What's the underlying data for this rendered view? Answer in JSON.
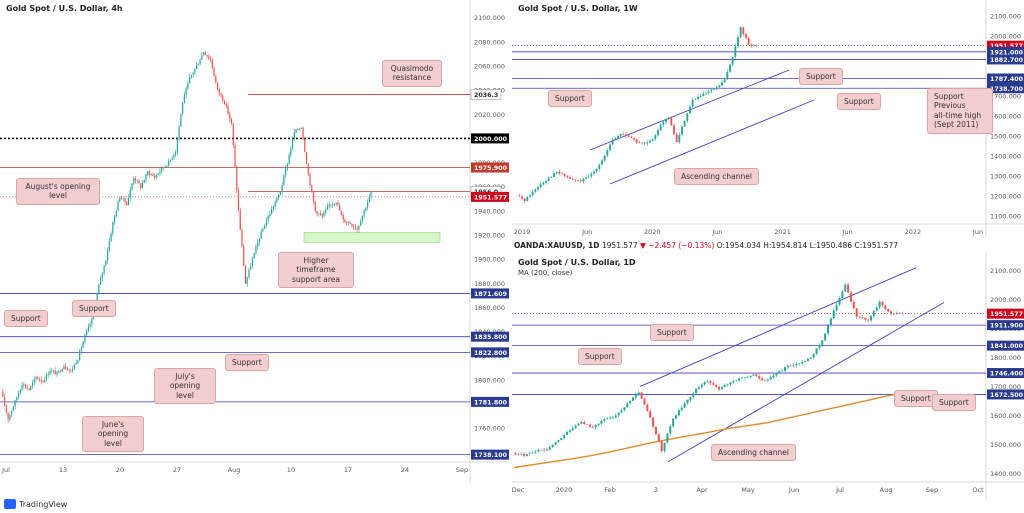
{
  "branding": {
    "name": "TradingView",
    "icon": "tradingview-logo-icon"
  },
  "symbol_bar": {
    "symbol": "OANDA:XAUUSD, 1D",
    "last": "1951.577",
    "change": "▼ −2.457 (−0.13%)",
    "open": "O:1954.034",
    "high": "H:1954.814",
    "low": "L:1950.486",
    "close": "C:1951.577"
  },
  "colors": {
    "candle_up": "#26a69a",
    "candle_down": "#ef5350",
    "support_line": "#3f3fbf",
    "resistance_line": "#c0392b",
    "ma_line": "#e08b2b",
    "demand_zone": "#b9f5a3",
    "callout_bg": "#f3cece",
    "price_tag_red": "#d0021b",
    "price_tag_blue": "#2a3a8f"
  },
  "chart_data": [
    {
      "type": "candlestick",
      "title": "Gold Spot / U.S. Dollar, 4h",
      "x_tick_labels": [
        "Jul",
        "13",
        "20",
        "27",
        "Aug",
        "10",
        "17",
        "24",
        "Sep"
      ],
      "y_tick_labels": [
        "2100.000",
        "2080.000",
        "2060.000",
        "2040.000",
        "2020.000",
        "2000.000",
        "1980.000",
        "1960.000",
        "1940.000",
        "1920.000",
        "1900.000",
        "1880.000",
        "1860.000",
        "1840.000",
        "1820.000",
        "1800.000",
        "1780.000",
        "1760.000",
        "1740.000"
      ],
      "ylim": [
        1732,
        2108
      ],
      "close_path": [
        1790,
        1768,
        1782,
        1797,
        1792,
        1802,
        1799,
        1808,
        1805,
        1812,
        1807,
        1818,
        1836,
        1850,
        1878,
        1900,
        1930,
        1952,
        1946,
        1968,
        1960,
        1972,
        1968,
        1975,
        1980,
        1990,
        2030,
        2050,
        2060,
        2072,
        2065,
        2040,
        2030,
        2012,
        1940,
        1880,
        1900,
        1918,
        1932,
        1944,
        1956,
        1980,
        2005,
        2010,
        1970,
        1940,
        1935,
        1945,
        1948,
        1932,
        1930,
        1925,
        1940,
        1955
      ],
      "horizontal_levels": [
        {
          "value": 2036.3,
          "label": "2036.3",
          "style": "resistance"
        },
        {
          "value": 2000.0,
          "label": "2000.000",
          "style": "round-number"
        },
        {
          "value": 1975.9,
          "label": "1975.900",
          "style": "resistance"
        },
        {
          "value": 1956.0,
          "label": "1956.0",
          "style": "resistance"
        },
        {
          "value": 1951.577,
          "label": "1951.577",
          "style": "last-price"
        },
        {
          "value": 1871.609,
          "label": "1871.609",
          "style": "support"
        },
        {
          "value": 1835.8,
          "label": "1835.800",
          "style": "support"
        },
        {
          "value": 1822.8,
          "label": "1822.800",
          "style": "support"
        },
        {
          "value": 1781.8,
          "label": "1781.800",
          "style": "support"
        },
        {
          "value": 1738.1,
          "label": "1738.100",
          "style": "support"
        }
      ],
      "zones": [
        {
          "from": 1914,
          "to": 1922,
          "label": "Higher timeframe support area"
        }
      ],
      "annotations": [
        "Quasimodo resistance",
        "August's opening level",
        "Higher timeframe support area",
        "Support",
        "Support",
        "Support",
        "July's opening level",
        "June's opening level"
      ]
    },
    {
      "type": "candlestick",
      "title": "Gold Spot / U.S. Dollar, 1W",
      "x_tick_labels": [
        "2019",
        "Jun",
        "2020",
        "Jun",
        "2021",
        "Jun",
        "2022",
        "Jun"
      ],
      "y_tick_labels": [
        "2100.000",
        "2000.000",
        "1900.000",
        "1800.000",
        "1700.000",
        "1600.000",
        "1500.000",
        "1400.000",
        "1300.000",
        "1200.000",
        "1100.000"
      ],
      "ylim": [
        1060,
        2140
      ],
      "close_path": [
        1200,
        1180,
        1220,
        1260,
        1290,
        1320,
        1300,
        1280,
        1275,
        1295,
        1340,
        1400,
        1480,
        1510,
        1500,
        1470,
        1460,
        1480,
        1560,
        1590,
        1470,
        1580,
        1680,
        1700,
        1720,
        1740,
        1780,
        1900,
        2040,
        1960,
        1950
      ],
      "horizontal_levels": [
        {
          "value": 1951.577,
          "label": "1951.577",
          "style": "last-price"
        },
        {
          "value": 1921.0,
          "label": "1921.000",
          "style": "support"
        },
        {
          "value": 1882.7,
          "label": "1882.700",
          "style": "support"
        },
        {
          "value": 1787.4,
          "label": "1787.400",
          "style": "support"
        },
        {
          "value": 1738.7,
          "label": "1738.700",
          "style": "support"
        }
      ],
      "annotations": [
        "Support",
        "Support",
        "Support",
        "Support\nPrevious\nall-time high\n(Sept 2011)",
        "Ascending channel"
      ]
    },
    {
      "type": "candlestick",
      "title": "Gold Spot / U.S. Dollar, 1D",
      "indicator": "MA (200, close)",
      "x_tick_labels": [
        "Dec",
        "2020",
        "Feb",
        "3",
        "Apr",
        "May",
        "Jun",
        "Jul",
        "Aug",
        "Sep",
        "Oct"
      ],
      "y_tick_labels": [
        "2100.000",
        "2000.000",
        "1900.000",
        "1800.000",
        "1700.000",
        "1600.000",
        "1500.000",
        "1400.000"
      ],
      "ylim": [
        1370,
        2130
      ],
      "close_path": [
        1470,
        1462,
        1478,
        1480,
        1515,
        1550,
        1575,
        1560,
        1585,
        1600,
        1640,
        1680,
        1590,
        1480,
        1590,
        1640,
        1690,
        1720,
        1690,
        1715,
        1730,
        1740,
        1720,
        1745,
        1770,
        1780,
        1800,
        1860,
        1960,
        2050,
        1940,
        1930,
        1990,
        1950,
        1952
      ],
      "ma_path": [
        1420,
        1430,
        1440,
        1450,
        1462,
        1475,
        1490,
        1505,
        1518,
        1530,
        1542,
        1555,
        1565,
        1575,
        1590,
        1605,
        1620,
        1635,
        1650,
        1665,
        1680
      ],
      "horizontal_levels": [
        {
          "value": 1951.577,
          "label": "1951.577",
          "style": "last-price"
        },
        {
          "value": 1911.9,
          "label": "1911.900",
          "style": "support"
        },
        {
          "value": 1841.0,
          "label": "1841.000",
          "style": "support"
        },
        {
          "value": 1746.4,
          "label": "1746.400",
          "style": "support"
        },
        {
          "value": 1672.5,
          "label": "1672.500",
          "style": "support"
        }
      ],
      "annotations": [
        "Support",
        "Support",
        "Support",
        "Support",
        "Ascending channel"
      ]
    }
  ]
}
